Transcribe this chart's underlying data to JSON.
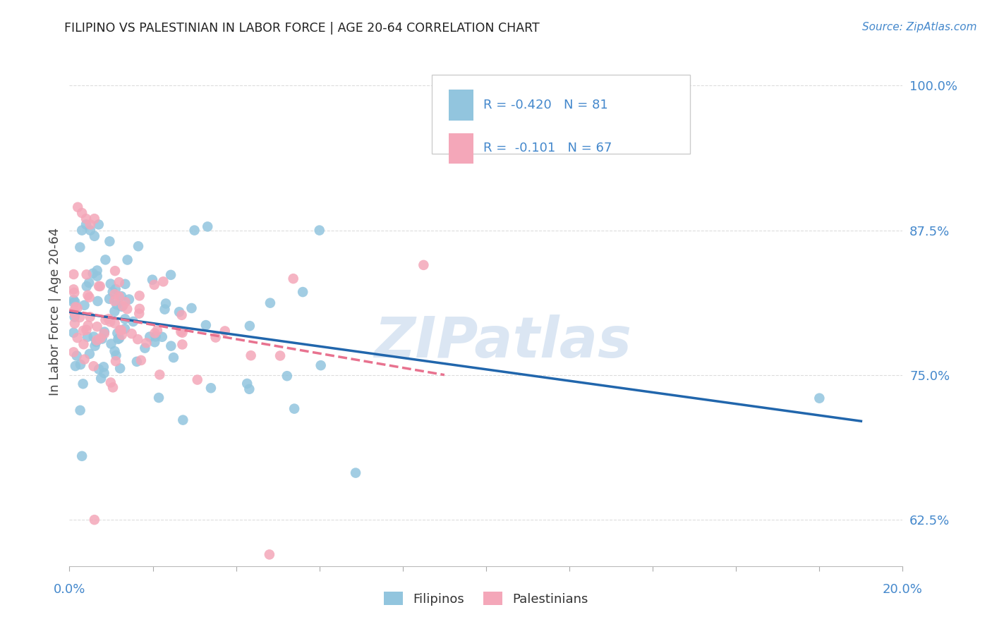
{
  "title": "FILIPINO VS PALESTINIAN IN LABOR FORCE | AGE 20-64 CORRELATION CHART",
  "source_text": "Source: ZipAtlas.com",
  "ylabel": "In Labor Force | Age 20-64",
  "ytick_labels": [
    "62.5%",
    "75.0%",
    "87.5%",
    "100.0%"
  ],
  "ytick_values": [
    0.625,
    0.75,
    0.875,
    1.0
  ],
  "xlim": [
    0.0,
    0.2
  ],
  "ylim": [
    0.585,
    1.025
  ],
  "filipino_color": "#92c5de",
  "palestinian_color": "#f4a7b9",
  "filipino_line_color": "#2166ac",
  "palestinian_line_color": "#e8728f",
  "watermark_text": "ZIPatlas",
  "background_color": "#ffffff",
  "grid_color": "#dddddd",
  "filipino_r": -0.42,
  "filipino_n": 81,
  "palestinian_r": -0.101,
  "palestinian_n": 67,
  "legend_text_1": "R = -0.420   N = 81",
  "legend_text_2": "R =  -0.101   N = 67",
  "filipino_label": "Filipinos",
  "palestinian_label": "Palestinians"
}
